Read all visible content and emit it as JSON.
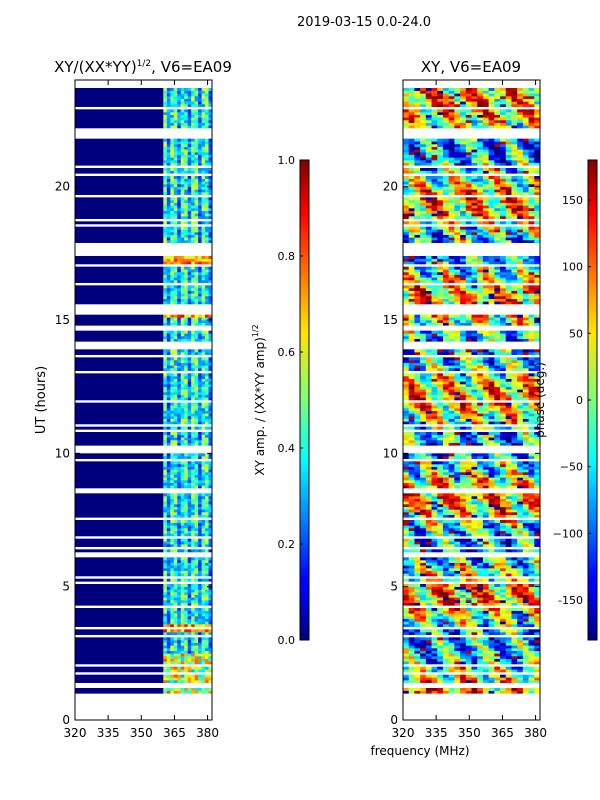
{
  "figure_title": "2019-03-15 0.0-24.0",
  "chart_data": [
    {
      "type": "heatmap",
      "title_main": "XY/(XX*YY)",
      "title_exp": "1/2",
      "title_suffix": ", V6=EA09",
      "xlabel": "",
      "ylabel": "UT (hours)",
      "xlim": [
        320,
        382
      ],
      "ylim": [
        0,
        24
      ],
      "xticks": [
        320,
        335,
        350,
        365,
        380
      ],
      "yticks": [
        0,
        5,
        10,
        15,
        20
      ],
      "colorbar": {
        "label_main": "XY amp. / (XX*YY amp)",
        "label_exp": "1/2",
        "range": [
          0.0,
          1.0
        ],
        "ticks": [
          "0.0",
          "0.2",
          "0.4",
          "0.6",
          "0.8",
          "1.0"
        ]
      }
    },
    {
      "type": "heatmap",
      "title": "XY, V6=EA09",
      "xlabel": "frequency (MHz)",
      "ylabel": "",
      "xlim": [
        320,
        382
      ],
      "ylim": [
        0,
        24
      ],
      "xticks": [
        320,
        335,
        350,
        365,
        380
      ],
      "yticks": [
        0,
        5,
        10,
        15,
        20
      ],
      "colorbar": {
        "label": "phase (deg.)",
        "range": [
          -180,
          180
        ],
        "ticks": [
          "-150",
          "−100",
          "−50",
          "0",
          "50",
          "100",
          "150"
        ]
      }
    }
  ],
  "colors": {
    "low": "#00007f",
    "high": "#7f0000",
    "gap": "#ffffff"
  }
}
